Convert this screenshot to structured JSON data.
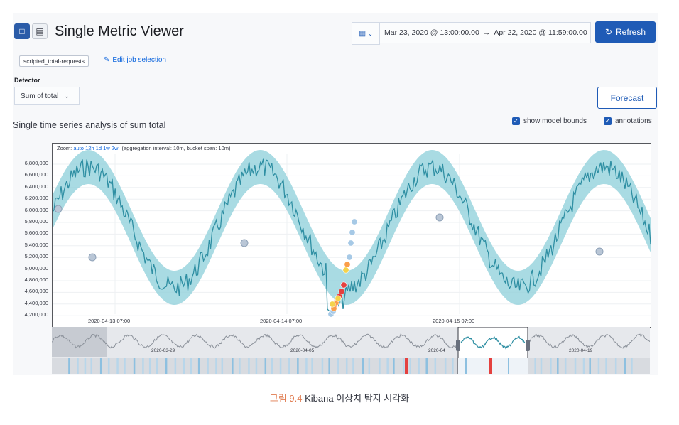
{
  "header": {
    "title": "Single Metric Viewer",
    "date_start": "Mar 23, 2020 @ 13:00:00.00",
    "date_arrow": "→",
    "date_end": "Apr 22, 2020 @ 11:59:00.00",
    "refresh_label": "Refresh"
  },
  "job": {
    "id": "scripted_total-requests",
    "edit_label": "Edit job selection"
  },
  "detector": {
    "label": "Detector",
    "value": "Sum of total"
  },
  "forecast_label": "Forecast",
  "panel": {
    "title": "Single time series analysis of sum total",
    "show_model_bounds_label": "show model bounds",
    "show_model_bounds": true,
    "annotations_label": "annotations",
    "annotations": true
  },
  "zoom": {
    "prefix": "Zoom:",
    "options": [
      "auto",
      "12h",
      "1d",
      "1w",
      "2w"
    ],
    "info": "(aggregation interval: 10m, bucket span: 10m)"
  },
  "chart_data": {
    "type": "line",
    "yticks": [
      "6,800,000",
      "6,600,000",
      "6,400,000",
      "6,200,000",
      "6,000,000",
      "5,800,000",
      "5,600,000",
      "5,400,000",
      "5,200,000",
      "5,000,000",
      "4,800,000",
      "4,600,000",
      "4,400,000",
      "4,200,000"
    ],
    "ylim": [
      4200000,
      6800000
    ],
    "xticks": [
      "2020-04-13 07:00",
      "2020-04-14 07:00",
      "2020-04-15 07:00"
    ],
    "context_xticks": [
      "2020-03-29",
      "2020-04-05",
      "2020-04",
      "2020-04-19"
    ],
    "series_color": "#2f8fa3",
    "bounds_color": "#8ccfda",
    "anomaly_colors": [
      "#e4413f",
      "#fb9e4a",
      "#f5d34b",
      "#a6c9e6"
    ]
  },
  "caption": {
    "figure": "그림 9.4",
    "text": "Kibana 이상치 탐지 시각화"
  }
}
